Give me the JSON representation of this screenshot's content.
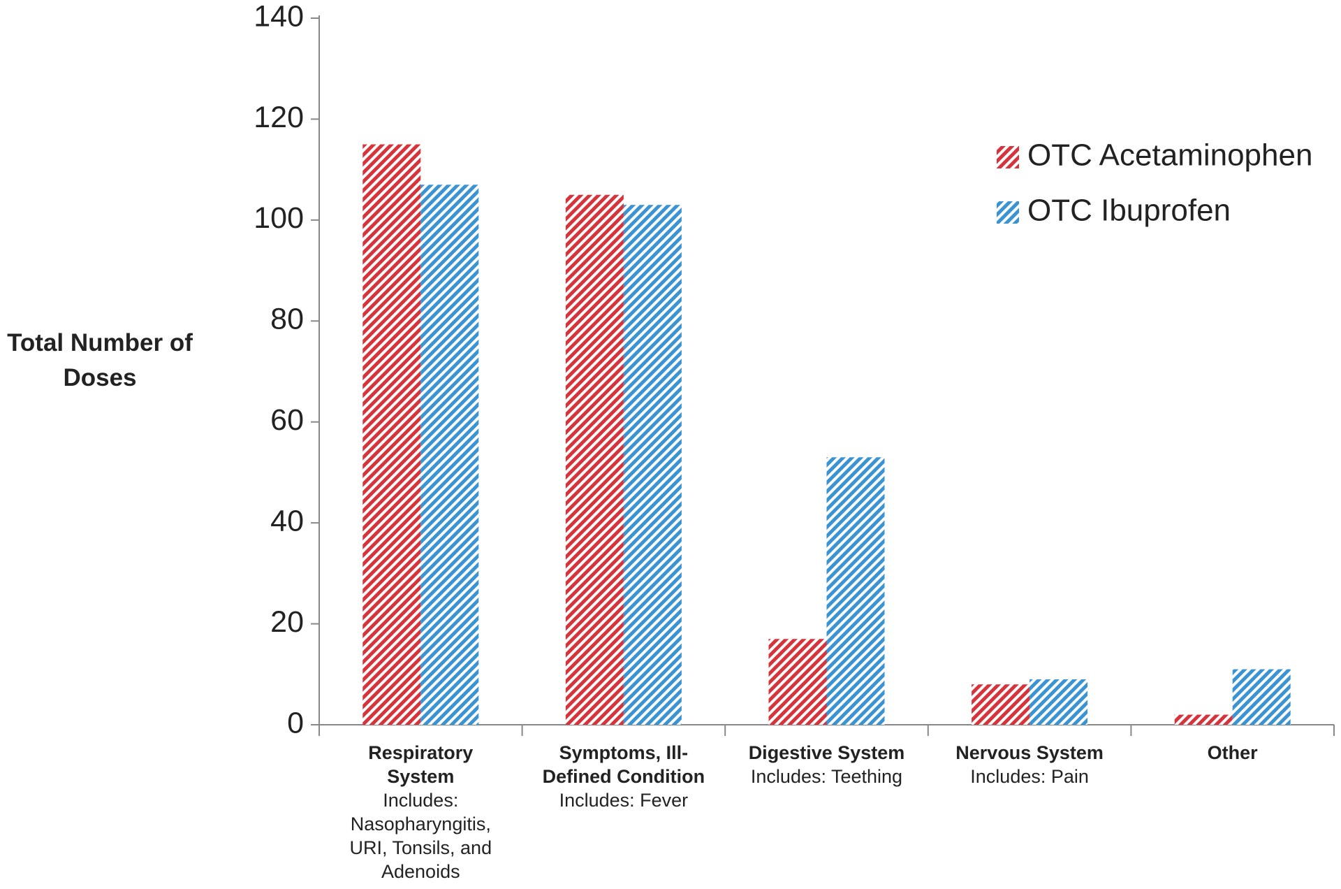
{
  "chart_data": {
    "type": "bar",
    "y_label": "Total Number of Doses",
    "categories": [
      "Respiratory System",
      "Symptoms, Ill-Defined Condition",
      "Digestive System",
      "Nervous System",
      "Other"
    ],
    "category_details": [
      "Includes: Nasopharyngitis, URI, Tonsils, and Adenoids",
      "Includes: Fever",
      "Includes: Teething",
      "Includes: Pain",
      null
    ],
    "series": [
      {
        "name": "OTC Acetaminophen",
        "color": "#d7333b",
        "values": [
          115,
          105,
          17,
          8,
          2
        ]
      },
      {
        "name": "OTC Ibuprofen",
        "color": "#3a93d3",
        "values": [
          107,
          103,
          53,
          9,
          11
        ]
      }
    ],
    "ylim": [
      0,
      140
    ],
    "yticks": [
      0,
      20,
      40,
      60,
      80,
      100,
      120,
      140
    ],
    "legend": "upper right",
    "pattern": "hatch"
  }
}
